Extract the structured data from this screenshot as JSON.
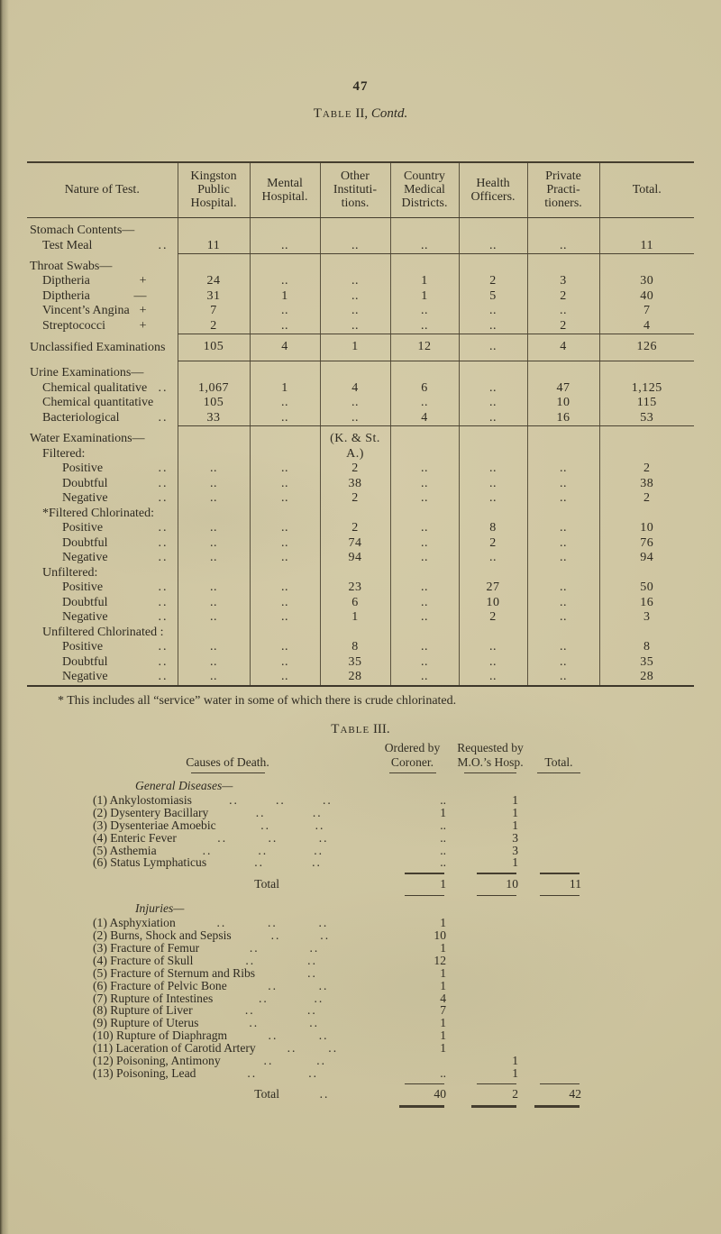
{
  "page": {
    "number": "47"
  },
  "table2": {
    "title": {
      "smallcaps": "Table",
      "num": " II, ",
      "contd": "Contd."
    },
    "nature_header": "Nature of Test.",
    "columns": [
      "Kingston\nPublic\nHospital.",
      "Mental\nHospital.",
      "Other\nInstituti-\ntions.",
      "Country\nMedical\nDistricts.",
      "Health\nOfficers.",
      "Private\nPracti-\ntioners.",
      "Total."
    ],
    "rows": [
      {
        "t": "group",
        "label": "Stomach Contents—"
      },
      {
        "t": "data",
        "label": "Test Meal",
        "ind": 1,
        "trail": "..",
        "cells": [
          "11",
          "..",
          "..",
          "..",
          "..",
          "..",
          "11"
        ],
        "sep": "num"
      },
      {
        "t": "group",
        "label": "Throat Swabs—"
      },
      {
        "t": "data",
        "label": "Diptheria",
        "ind": 1,
        "sign": "+",
        "cells": [
          "24",
          "..",
          "..",
          "1",
          "2",
          "3",
          "30"
        ]
      },
      {
        "t": "data",
        "label": "Diptheria",
        "ind": 1,
        "sign": "—",
        "cells": [
          "31",
          "1",
          "..",
          "1",
          "5",
          "2",
          "40"
        ]
      },
      {
        "t": "data",
        "label": "Vincent’s Angina",
        "ind": 1,
        "sign": "+",
        "cells": [
          "7",
          "..",
          "..",
          "..",
          "..",
          "..",
          "7"
        ]
      },
      {
        "t": "data",
        "label": "Streptococci",
        "ind": 1,
        "sign": "+",
        "cells": [
          "2",
          "..",
          "..",
          "..",
          "..",
          "2",
          "4"
        ],
        "sep": "num"
      },
      {
        "t": "data",
        "label": "Unclassified Examinations",
        "ind": 0,
        "pad": 1,
        "cells": [
          "105",
          "4",
          "1",
          "12",
          "..",
          "4",
          "126"
        ],
        "sep": "num"
      },
      {
        "t": "group",
        "label": "Urine Examinations—"
      },
      {
        "t": "data",
        "label": "Chemical qualitative",
        "ind": 1,
        "trail": "..",
        "cells": [
          "1,067",
          "1",
          "4",
          "6",
          "..",
          "47",
          "1,125"
        ]
      },
      {
        "t": "data",
        "label": "Chemical quantitative",
        "ind": 1,
        "cells": [
          "105",
          "..",
          "..",
          "..",
          "..",
          "10",
          "115"
        ]
      },
      {
        "t": "data",
        "label": "Bacteriological",
        "ind": 1,
        "trail": "..",
        "cells": [
          "33",
          "..",
          "..",
          "4",
          "..",
          "16",
          "53"
        ],
        "sep": "num"
      },
      {
        "t": "group",
        "label": "Water Examinations—",
        "cells": [
          "",
          "",
          "(K. & St.",
          "",
          "",
          "",
          ""
        ]
      },
      {
        "t": "sub",
        "label": "Filtered:",
        "ind": 1,
        "cells": [
          "",
          "",
          "A.)",
          "",
          "",
          "",
          ""
        ]
      },
      {
        "t": "data",
        "label": "Positive",
        "ind": 2,
        "trail": "..",
        "cells": [
          "..",
          "..",
          "2",
          "..",
          "..",
          "..",
          "2"
        ]
      },
      {
        "t": "data",
        "label": "Doubtful",
        "ind": 2,
        "trail": "..",
        "cells": [
          "..",
          "..",
          "38",
          "..",
          "..",
          "..",
          "38"
        ]
      },
      {
        "t": "data",
        "label": "Negative",
        "ind": 2,
        "trail": "..",
        "cells": [
          "..",
          "..",
          "2",
          "..",
          "..",
          "..",
          "2"
        ]
      },
      {
        "t": "sub",
        "label": "*Filtered Chlorinated:",
        "ind": 1
      },
      {
        "t": "data",
        "label": "Positive",
        "ind": 2,
        "trail": "..",
        "cells": [
          "..",
          "..",
          "2",
          "..",
          "8",
          "..",
          "10"
        ]
      },
      {
        "t": "data",
        "label": "Doubtful",
        "ind": 2,
        "trail": "..",
        "cells": [
          "..",
          "..",
          "74",
          "..",
          "2",
          "..",
          "76"
        ]
      },
      {
        "t": "data",
        "label": "Negative",
        "ind": 2,
        "trail": "..",
        "cells": [
          "..",
          "..",
          "94",
          "..",
          "..",
          "..",
          "94"
        ]
      },
      {
        "t": "sub",
        "label": "Unfiltered:",
        "ind": 1
      },
      {
        "t": "data",
        "label": "Positive",
        "ind": 2,
        "trail": "..",
        "cells": [
          "..",
          "..",
          "23",
          "..",
          "27",
          "..",
          "50"
        ]
      },
      {
        "t": "data",
        "label": "Doubtful",
        "ind": 2,
        "trail": "..",
        "cells": [
          "..",
          "..",
          "6",
          "..",
          "10",
          "..",
          "16"
        ]
      },
      {
        "t": "data",
        "label": "Negative",
        "ind": 2,
        "trail": "..",
        "cells": [
          "..",
          "..",
          "1",
          "..",
          "2",
          "..",
          "3"
        ]
      },
      {
        "t": "sub",
        "label": "Unfiltered Chlorinated :",
        "ind": 1
      },
      {
        "t": "data",
        "label": "Positive",
        "ind": 2,
        "trail": "..",
        "cells": [
          "..",
          "..",
          "8",
          "..",
          "..",
          "..",
          "8"
        ]
      },
      {
        "t": "data",
        "label": "Doubtful",
        "ind": 2,
        "trail": "..",
        "cells": [
          "..",
          "..",
          "35",
          "..",
          "..",
          "..",
          "35"
        ]
      },
      {
        "t": "data",
        "label": "Negative",
        "ind": 2,
        "trail": "..",
        "cells": [
          "..",
          "..",
          "28",
          "..",
          "..",
          "..",
          "28"
        ]
      }
    ],
    "footnote": "* This includes all “service” water in some of which there is crude chlorinated."
  },
  "table3": {
    "title": {
      "smallcaps": "Table",
      "rest": " III."
    },
    "causes_header": "Causes of Death.",
    "col_headers": {
      "coroner_l1": "Ordered by",
      "coroner_l2": "Coroner.",
      "mo_l1": "Requested by",
      "mo_l2": "M.O.’s Hosp.",
      "total": "Total."
    },
    "sections": [
      {
        "heading": "General Diseases—",
        "rows": [
          {
            "label": "(1) Ankylostomiasis",
            "lead": [
              "..",
              "..",
              ".."
            ],
            "coroner": "..",
            "mo": "1",
            "total": ""
          },
          {
            "label": "(2) Dysentery Bacillary",
            "lead": [
              "..",
              ".."
            ],
            "coroner": "1",
            "mo": "1",
            "total": ""
          },
          {
            "label": "(3) Dysenteriae Amoebic",
            "lead": [
              "..",
              ".."
            ],
            "coroner": "..",
            "mo": "1",
            "total": ""
          },
          {
            "label": "(4) Enteric Fever",
            "lead": [
              "..",
              "..",
              ".."
            ],
            "coroner": "..",
            "mo": "3",
            "total": ""
          },
          {
            "label": "(5) Asthemia",
            "lead": [
              "..",
              "..",
              ".."
            ],
            "coroner": "..",
            "mo": "3",
            "total": ""
          },
          {
            "label": "(6) Status Lymphaticus",
            "lead": [
              "..",
              ".."
            ],
            "coroner": "..",
            "mo": "1",
            "total": ""
          }
        ],
        "total": {
          "label": "Total",
          "lead": "",
          "coroner": "1",
          "mo": "10",
          "total": "11"
        }
      },
      {
        "heading": "Injuries—",
        "rows": [
          {
            "label": "(1) Asphyxiation",
            "lead": [
              "..",
              "..",
              ".."
            ],
            "coroner": "1",
            "mo": "",
            "total": ""
          },
          {
            "label": "(2) Burns, Shock and Sepsis",
            "lead": [
              "..",
              ".."
            ],
            "coroner": "10",
            "mo": "",
            "total": ""
          },
          {
            "label": "(3) Fracture of Femur",
            "lead": [
              "..",
              ".."
            ],
            "coroner": "1",
            "mo": "",
            "total": ""
          },
          {
            "label": "(4) Fracture of Skull",
            "lead": [
              "..",
              ".."
            ],
            "coroner": "12",
            "mo": "",
            "total": ""
          },
          {
            "label": "(5) Fracture of Sternum and Ribs",
            "lead": [
              ".."
            ],
            "coroner": "1",
            "mo": "",
            "total": ""
          },
          {
            "label": "(6) Fracture of Pelvic Bone",
            "lead": [
              "..",
              ".."
            ],
            "coroner": "1",
            "mo": "",
            "total": ""
          },
          {
            "label": "(7) Rupture of Intestines",
            "lead": [
              "..",
              ".."
            ],
            "coroner": "4",
            "mo": "",
            "total": ""
          },
          {
            "label": "(8) Rupture of Liver",
            "lead": [
              "..",
              ".."
            ],
            "coroner": "7",
            "mo": "",
            "total": ""
          },
          {
            "label": "(9) Rupture of Uterus",
            "lead": [
              "..",
              ".."
            ],
            "coroner": "1",
            "mo": "",
            "total": ""
          },
          {
            "label": "(10) Rupture of Diaphragm",
            "lead": [
              "..",
              ".."
            ],
            "coroner": "1",
            "mo": "",
            "total": ""
          },
          {
            "label": "(11) Laceration of Carotid Artery",
            "lead": [
              "..",
              ".."
            ],
            "coroner": "1",
            "mo": "",
            "total": ""
          },
          {
            "label": "(12) Poisoning, Antimony",
            "lead": [
              "..",
              ".."
            ],
            "coroner": "",
            "mo": "1",
            "total": ""
          },
          {
            "label": "(13) Poisoning, Lead",
            "lead": [
              "..",
              ".."
            ],
            "coroner": "..",
            "mo": "1",
            "total": ""
          }
        ],
        "total": {
          "label": "Total",
          "lead": "..",
          "coroner": "40",
          "mo": "2",
          "total": "42"
        }
      }
    ]
  }
}
